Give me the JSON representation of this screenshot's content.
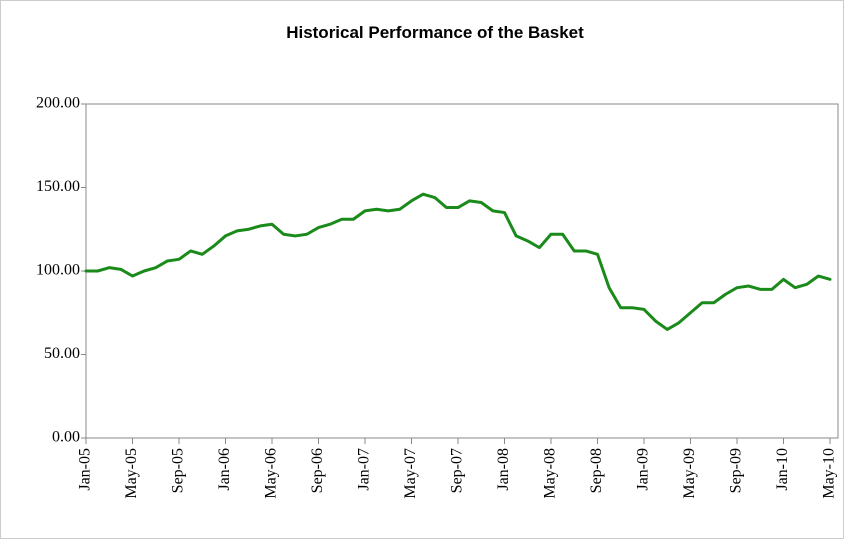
{
  "chart_data": {
    "type": "line",
    "title": "Historical Performance of the Basket",
    "categories": [
      "Jan-05",
      null,
      null,
      null,
      "May-05",
      null,
      null,
      null,
      "Sep-05",
      null,
      null,
      null,
      "Jan-06",
      null,
      null,
      null,
      "May-06",
      null,
      null,
      null,
      "Sep-06",
      null,
      null,
      null,
      "Jan-07",
      null,
      null,
      null,
      "May-07",
      null,
      null,
      null,
      "Sep-07",
      null,
      null,
      null,
      "Jan-08",
      null,
      null,
      null,
      "May-08",
      null,
      null,
      null,
      "Sep-08",
      null,
      null,
      null,
      "Jan-09",
      null,
      null,
      null,
      "May-09",
      null,
      null,
      null,
      "Sep-09",
      null,
      null,
      null,
      "Jan-10",
      null,
      null,
      null,
      "May-10"
    ],
    "series": [
      {
        "name": "Basket",
        "color": "#1a8a1a",
        "values": [
          100,
          100,
          102,
          101,
          97,
          100,
          102,
          106,
          107,
          112,
          110,
          115,
          121,
          124,
          125,
          127,
          128,
          122,
          121,
          122,
          126,
          128,
          131,
          131,
          136,
          137,
          136,
          137,
          142,
          146,
          144,
          138,
          138,
          142,
          141,
          136,
          135,
          121,
          118,
          114,
          122,
          122,
          112,
          112,
          110,
          90,
          78,
          78,
          77,
          70,
          65,
          69,
          75,
          81,
          81,
          86,
          90,
          91,
          89,
          89,
          95,
          90,
          92,
          97,
          95
        ]
      }
    ],
    "ylim": [
      0,
      200
    ],
    "yticks": [
      {
        "value": 0,
        "label": "0.00"
      },
      {
        "value": 50,
        "label": "50.00"
      },
      {
        "value": 100,
        "label": "100.00"
      },
      {
        "value": 150,
        "label": "150.00"
      },
      {
        "value": 200,
        "label": "200.00"
      }
    ]
  }
}
